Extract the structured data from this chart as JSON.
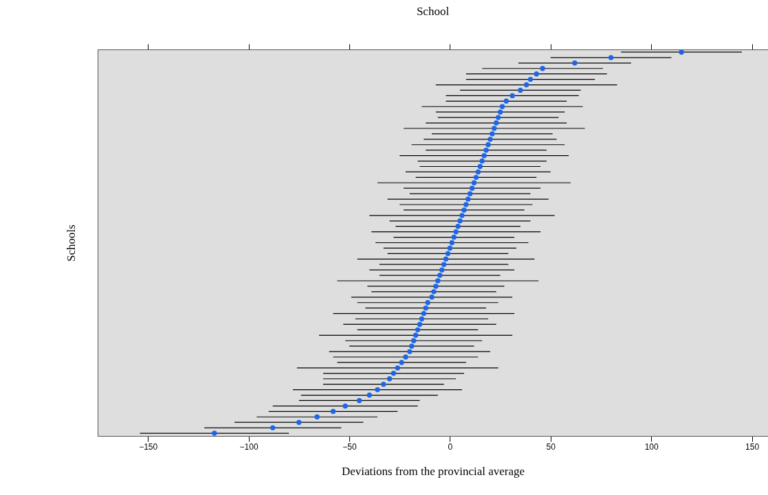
{
  "chart_data": {
    "type": "scatter",
    "title": "School",
    "xlabel": "Deviations from the provincial average",
    "ylabel": "Schools",
    "orientation": "horizontal",
    "categories": [
      null,
      null,
      null,
      null,
      null,
      null,
      null,
      null,
      null,
      null,
      null,
      null,
      null,
      null,
      null,
      null,
      null,
      null,
      null,
      null,
      null,
      null,
      null,
      null,
      null,
      null,
      null,
      null,
      null,
      null,
      null,
      null,
      null,
      null,
      null,
      null,
      null,
      null,
      null,
      null,
      null,
      null,
      null,
      null,
      null,
      null,
      null,
      null,
      null,
      null,
      null,
      null,
      null,
      null,
      null,
      null,
      null,
      null,
      null,
      null,
      null,
      null,
      null,
      null,
      null,
      null,
      null,
      null,
      null,
      null,
      null
    ],
    "values": [
      115,
      80,
      62,
      46,
      43,
      40,
      38,
      35,
      31,
      28,
      26,
      25,
      24,
      23,
      22,
      21,
      20,
      19,
      18,
      17,
      16,
      15,
      14,
      13,
      12,
      11,
      10,
      9,
      8,
      7,
      6,
      5,
      4,
      3,
      2,
      1,
      0,
      -1,
      -2,
      -3,
      -4,
      -5,
      -6,
      -7,
      -8,
      -9,
      -11,
      -12,
      -13,
      -14,
      -15,
      -16,
      -17,
      -18,
      -19,
      -20,
      -22,
      -24,
      -26,
      -28,
      -30,
      -33,
      -36,
      -40,
      -45,
      -52,
      -58,
      -66,
      -75,
      -88,
      -117
    ],
    "errors": [
      30,
      30,
      28,
      30,
      35,
      32,
      45,
      30,
      33,
      30,
      40,
      32,
      30,
      35,
      45,
      30,
      33,
      38,
      30,
      42,
      32,
      30,
      36,
      30,
      48,
      34,
      30,
      40,
      33,
      30,
      46,
      35,
      31,
      42,
      30,
      38,
      33,
      30,
      44,
      32,
      36,
      30,
      50,
      34,
      31,
      40,
      35,
      30,
      45,
      33,
      38,
      30,
      48,
      34,
      31,
      40,
      36,
      32,
      50,
      35,
      33,
      30,
      42,
      34,
      30,
      36,
      32,
      30,
      32,
      34,
      37
    ],
    "color": "#1f66e5",
    "marker": "circle",
    "xlim": [
      -175,
      158
    ],
    "xticks": [
      -150,
      -100,
      -50,
      0,
      50,
      100,
      150
    ],
    "tick_labels": "x"
  }
}
